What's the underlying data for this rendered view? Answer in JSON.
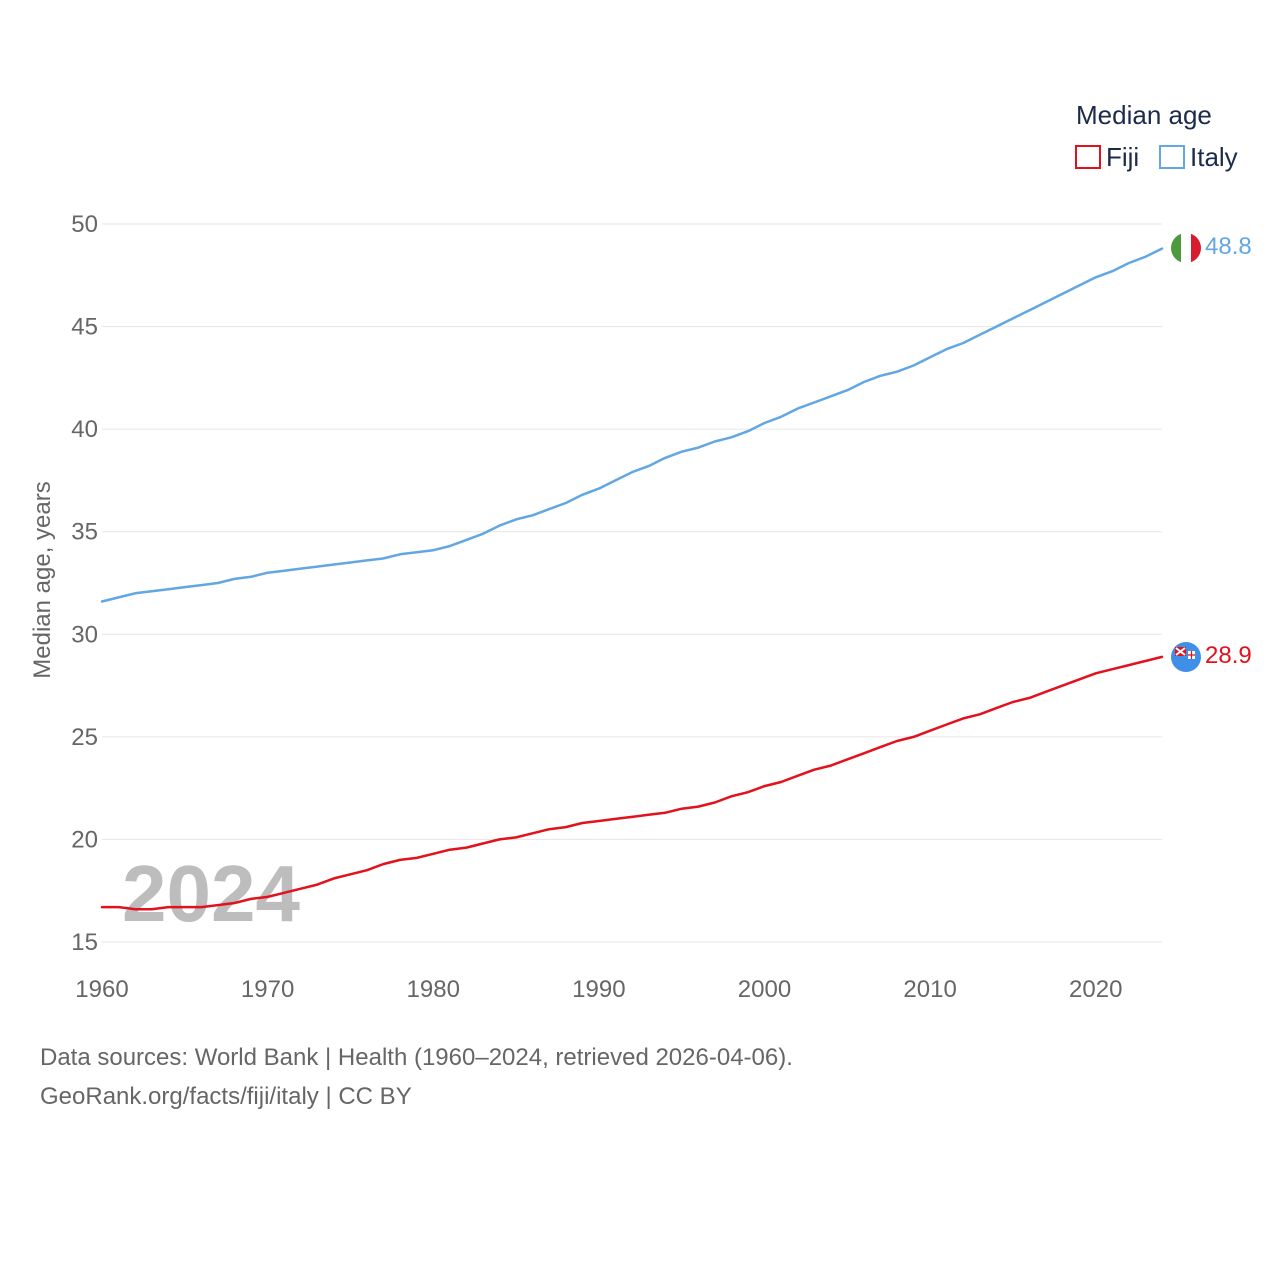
{
  "chart_data": {
    "type": "line",
    "title": "",
    "xlabel": "",
    "ylabel": "Median age, years",
    "xlim": [
      1960,
      2024
    ],
    "ylim": [
      15,
      50
    ],
    "x_ticks": [
      1960,
      1970,
      1980,
      1990,
      2000,
      2010,
      2020
    ],
    "y_ticks": [
      15,
      20,
      25,
      30,
      35,
      40,
      45,
      50
    ],
    "legend": {
      "title": "Median age",
      "placement": "top-right"
    },
    "current_year_label": "2024",
    "x": [
      1960,
      1961,
      1962,
      1963,
      1964,
      1965,
      1966,
      1967,
      1968,
      1969,
      1970,
      1971,
      1972,
      1973,
      1974,
      1975,
      1976,
      1977,
      1978,
      1979,
      1980,
      1981,
      1982,
      1983,
      1984,
      1985,
      1986,
      1987,
      1988,
      1989,
      1990,
      1991,
      1992,
      1993,
      1994,
      1995,
      1996,
      1997,
      1998,
      1999,
      2000,
      2001,
      2002,
      2003,
      2004,
      2005,
      2006,
      2007,
      2008,
      2009,
      2010,
      2011,
      2012,
      2013,
      2014,
      2015,
      2016,
      2017,
      2018,
      2019,
      2020,
      2021,
      2022,
      2023,
      2024
    ],
    "series": [
      {
        "name": "Fiji",
        "color": "#e3111b",
        "end_label": "28.9",
        "values": [
          16.7,
          16.7,
          16.6,
          16.6,
          16.7,
          16.7,
          16.7,
          16.8,
          16.9,
          17.1,
          17.2,
          17.4,
          17.6,
          17.8,
          18.1,
          18.3,
          18.5,
          18.8,
          19.0,
          19.1,
          19.3,
          19.5,
          19.6,
          19.8,
          20.0,
          20.1,
          20.3,
          20.5,
          20.6,
          20.8,
          20.9,
          21.0,
          21.1,
          21.2,
          21.3,
          21.5,
          21.6,
          21.8,
          22.1,
          22.3,
          22.6,
          22.8,
          23.1,
          23.4,
          23.6,
          23.9,
          24.2,
          24.5,
          24.8,
          25.0,
          25.3,
          25.6,
          25.9,
          26.1,
          26.4,
          26.7,
          26.9,
          27.2,
          27.5,
          27.8,
          28.1,
          28.3,
          28.5,
          28.7,
          28.9
        ]
      },
      {
        "name": "Italy",
        "color": "#62a6e2",
        "end_label": "48.8",
        "values": [
          31.6,
          31.8,
          32.0,
          32.1,
          32.2,
          32.3,
          32.4,
          32.5,
          32.7,
          32.8,
          33.0,
          33.1,
          33.2,
          33.3,
          33.4,
          33.5,
          33.6,
          33.7,
          33.9,
          34.0,
          34.1,
          34.3,
          34.6,
          34.9,
          35.3,
          35.6,
          35.8,
          36.1,
          36.4,
          36.8,
          37.1,
          37.5,
          37.9,
          38.2,
          38.6,
          38.9,
          39.1,
          39.4,
          39.6,
          39.9,
          40.3,
          40.6,
          41.0,
          41.3,
          41.6,
          41.9,
          42.3,
          42.6,
          42.8,
          43.1,
          43.5,
          43.9,
          44.2,
          44.6,
          45.0,
          45.4,
          45.8,
          46.2,
          46.6,
          47.0,
          47.4,
          47.7,
          48.1,
          48.4,
          48.8
        ]
      }
    ]
  },
  "footer": {
    "sources": "Data sources: World Bank | Health (1960–2024, retrieved 2026-04-06).",
    "attribution": "GeoRank.org/facts/fiji/italy | CC BY"
  }
}
